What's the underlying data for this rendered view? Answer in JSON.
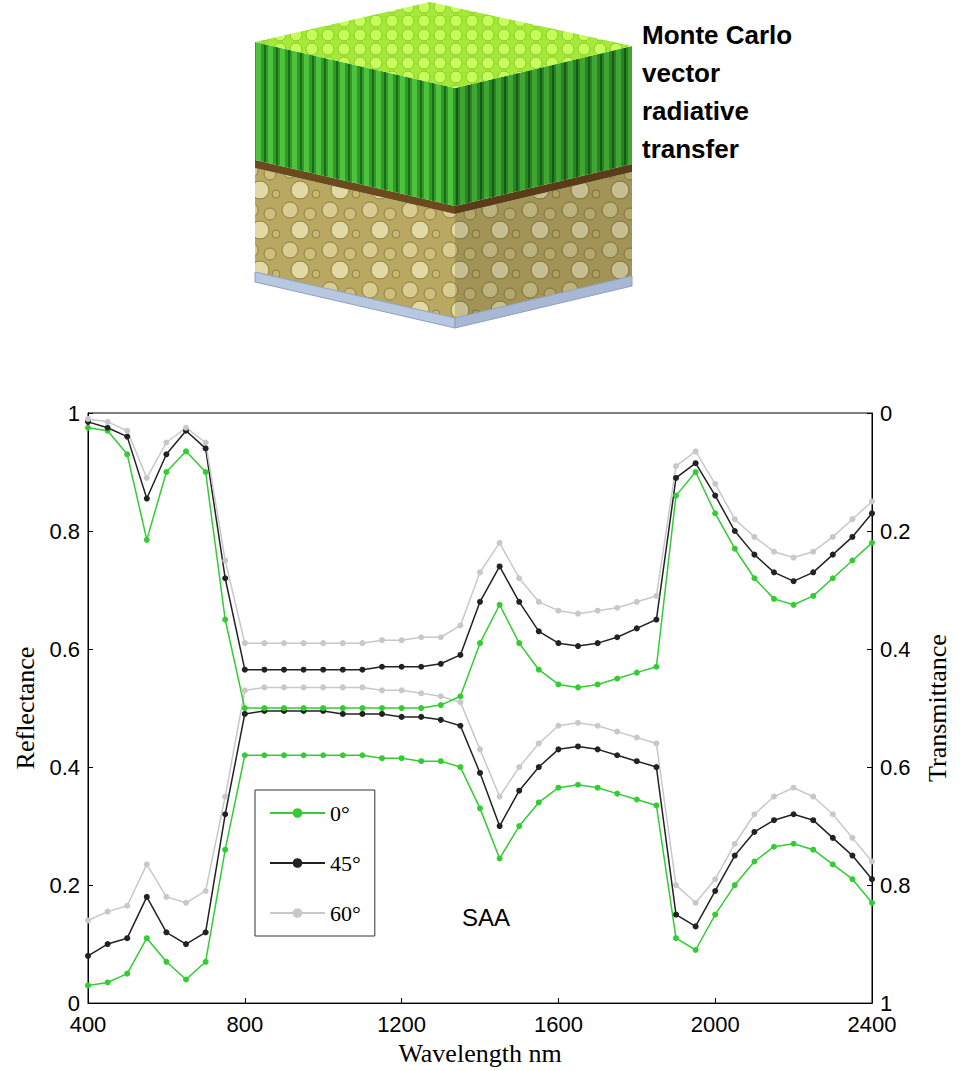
{
  "illustration": {
    "label": "Monte Carlo vector radiative transfer"
  },
  "chart_data": {
    "type": "line",
    "x_label": "Wavelength nm",
    "y_label": "Reflectance",
    "y2_label": "Transmittance",
    "legend_title": "SAA",
    "legend": "lower left",
    "grid": false,
    "marker": "circle",
    "xlim": [
      400,
      2400
    ],
    "xticks": [
      400,
      800,
      1200,
      1600,
      2000,
      2400
    ],
    "ylim": [
      0,
      1
    ],
    "yticks": [
      0,
      0.2,
      0.4,
      0.6,
      0.8,
      1
    ],
    "y2lim": [
      1,
      0
    ],
    "y2ticks": [
      0,
      0.2,
      0.4,
      0.6,
      0.8,
      1
    ],
    "x": [
      400,
      450,
      500,
      550,
      600,
      650,
      700,
      750,
      800,
      850,
      900,
      950,
      1000,
      1050,
      1100,
      1150,
      1200,
      1250,
      1300,
      1350,
      1400,
      1450,
      1500,
      1550,
      1600,
      1650,
      1700,
      1750,
      1800,
      1850,
      1900,
      1950,
      2000,
      2050,
      2100,
      2150,
      2200,
      2250,
      2300,
      2350,
      2400
    ],
    "series": [
      {
        "name": "0°",
        "color": "#33cc33",
        "axis": "y",
        "values": [
          0.03,
          0.035,
          0.05,
          0.11,
          0.07,
          0.04,
          0.07,
          0.26,
          0.42,
          0.42,
          0.42,
          0.42,
          0.42,
          0.42,
          0.42,
          0.415,
          0.415,
          0.41,
          0.41,
          0.4,
          0.33,
          0.245,
          0.3,
          0.34,
          0.365,
          0.37,
          0.365,
          0.355,
          0.345,
          0.335,
          0.11,
          0.09,
          0.15,
          0.2,
          0.24,
          0.265,
          0.27,
          0.26,
          0.235,
          0.21,
          0.17
        ]
      },
      {
        "name": "45°",
        "color": "#222222",
        "axis": "y",
        "values": [
          0.08,
          0.1,
          0.11,
          0.18,
          0.12,
          0.1,
          0.12,
          0.32,
          0.49,
          0.495,
          0.495,
          0.495,
          0.495,
          0.49,
          0.49,
          0.49,
          0.485,
          0.485,
          0.48,
          0.47,
          0.39,
          0.3,
          0.36,
          0.4,
          0.43,
          0.435,
          0.43,
          0.42,
          0.41,
          0.4,
          0.15,
          0.13,
          0.19,
          0.25,
          0.29,
          0.31,
          0.32,
          0.31,
          0.28,
          0.25,
          0.21
        ]
      },
      {
        "name": "60°",
        "color": "#c8c8c8",
        "axis": "y",
        "values": [
          0.14,
          0.155,
          0.165,
          0.235,
          0.18,
          0.17,
          0.19,
          0.35,
          0.53,
          0.535,
          0.535,
          0.535,
          0.535,
          0.535,
          0.535,
          0.53,
          0.53,
          0.525,
          0.52,
          0.51,
          0.43,
          0.35,
          0.4,
          0.44,
          0.47,
          0.475,
          0.47,
          0.46,
          0.45,
          0.44,
          0.2,
          0.17,
          0.21,
          0.27,
          0.32,
          0.35,
          0.365,
          0.35,
          0.32,
          0.28,
          0.24
        ]
      },
      {
        "name": "0°",
        "color": "#33cc33",
        "axis": "y2",
        "values": [
          0.025,
          0.03,
          0.07,
          0.215,
          0.1,
          0.065,
          0.1,
          0.35,
          0.5,
          0.5,
          0.5,
          0.5,
          0.5,
          0.5,
          0.5,
          0.5,
          0.5,
          0.5,
          0.495,
          0.48,
          0.39,
          0.325,
          0.39,
          0.435,
          0.46,
          0.465,
          0.46,
          0.45,
          0.44,
          0.43,
          0.14,
          0.1,
          0.17,
          0.23,
          0.28,
          0.315,
          0.325,
          0.31,
          0.28,
          0.25,
          0.22
        ]
      },
      {
        "name": "45°",
        "color": "#222222",
        "axis": "y2",
        "values": [
          0.015,
          0.025,
          0.04,
          0.145,
          0.07,
          0.03,
          0.06,
          0.28,
          0.435,
          0.435,
          0.435,
          0.435,
          0.435,
          0.435,
          0.435,
          0.43,
          0.43,
          0.43,
          0.425,
          0.41,
          0.32,
          0.26,
          0.32,
          0.37,
          0.39,
          0.395,
          0.39,
          0.38,
          0.365,
          0.35,
          0.11,
          0.085,
          0.14,
          0.2,
          0.24,
          0.27,
          0.285,
          0.27,
          0.24,
          0.21,
          0.17
        ]
      },
      {
        "name": "60°",
        "color": "#c8c8c8",
        "axis": "y2",
        "values": [
          0.01,
          0.015,
          0.03,
          0.11,
          0.05,
          0.025,
          0.05,
          0.25,
          0.39,
          0.39,
          0.39,
          0.39,
          0.39,
          0.39,
          0.39,
          0.385,
          0.385,
          0.38,
          0.38,
          0.36,
          0.27,
          0.22,
          0.28,
          0.32,
          0.335,
          0.34,
          0.335,
          0.33,
          0.32,
          0.31,
          0.09,
          0.065,
          0.12,
          0.18,
          0.21,
          0.235,
          0.245,
          0.235,
          0.21,
          0.18,
          0.15
        ]
      }
    ]
  }
}
